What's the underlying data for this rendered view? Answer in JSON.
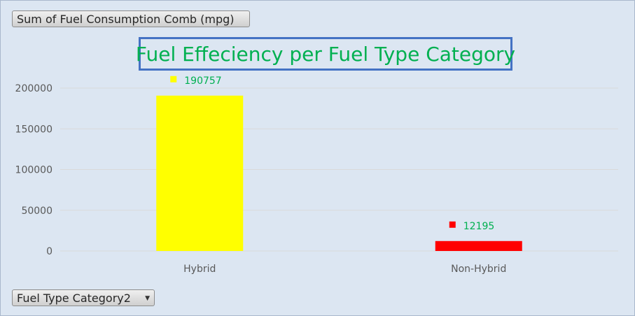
{
  "value_field_button": {
    "label": "Sum of Fuel Consumption Comb (mpg)"
  },
  "axis_field_button": {
    "label": "Fuel Type Category2",
    "icon": "dropdown-arrow-icon"
  },
  "colors": {
    "title": "#00b050",
    "title_border": "#4472c4",
    "data_labels": "#00b050",
    "background": "#dce6f2",
    "gridlines": "#d9d9d9"
  },
  "chart_data": {
    "type": "bar",
    "title": "Fuel Effeciency per Fuel Type Category",
    "xlabel": "",
    "ylabel": "",
    "categories": [
      "Hybrid",
      "Non-Hybrid"
    ],
    "values": [
      190757,
      12195
    ],
    "bar_colors": [
      "#ffff00",
      "#ff0000"
    ],
    "data_labels": [
      "190757",
      "12195"
    ],
    "ylim": [
      0,
      200000
    ],
    "yticks": [
      0,
      50000,
      100000,
      150000,
      200000
    ],
    "ytick_labels": [
      "0",
      "50000",
      "100000",
      "150000",
      "200000"
    ],
    "grid": true,
    "legend": "none"
  }
}
